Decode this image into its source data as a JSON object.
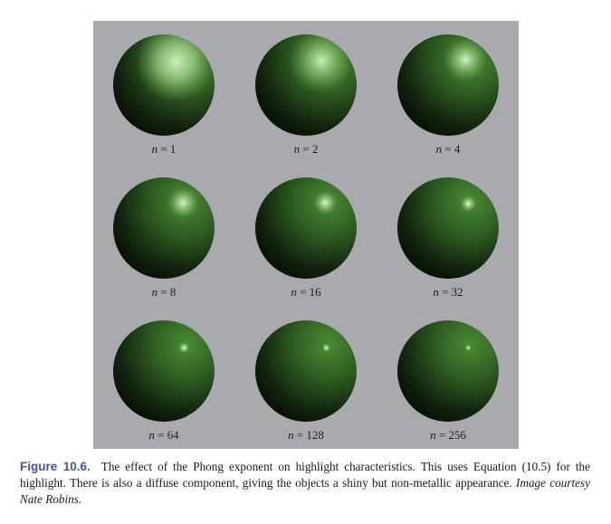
{
  "figure": {
    "spheres": [
      {
        "var": "n",
        "eq": " = ",
        "value": "1"
      },
      {
        "var": "n",
        "eq": " = ",
        "value": "2"
      },
      {
        "var": "n",
        "eq": " = ",
        "value": "4"
      },
      {
        "var": "n",
        "eq": " = ",
        "value": "8"
      },
      {
        "var": "n",
        "eq": " = ",
        "value": "16"
      },
      {
        "var": "n",
        "eq": " = ",
        "value": "32"
      },
      {
        "var": "n",
        "eq": " = ",
        "value": "64"
      },
      {
        "var": "n",
        "eq": " = ",
        "value": "128"
      },
      {
        "var": "n",
        "eq": " = ",
        "value": "256"
      }
    ],
    "colors": {
      "panel": "#a8aaad",
      "sphere": "#3a6e28",
      "highlight": "#e8ffe0"
    }
  },
  "caption": {
    "label": "Figure 10.6.",
    "text": "The effect of the Phong exponent on highlight characteristics. This uses Equation (10.5) for the highlight. There is also a diffuse component, giving the objects a shiny but non-metallic appearance.",
    "credit": "Image courtesy Nate Robins."
  }
}
